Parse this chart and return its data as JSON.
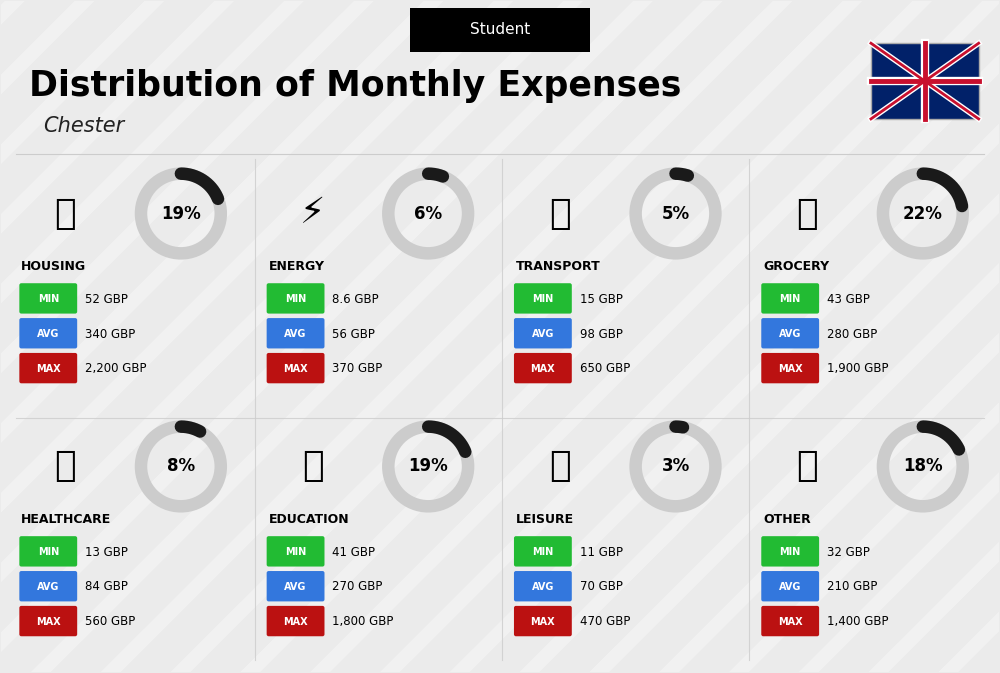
{
  "title": "Distribution of Monthly Expenses",
  "subtitle": "Chester",
  "tag": "Student",
  "bg_color": "#ebebeb",
  "categories": [
    {
      "name": "HOUSING",
      "pct": 19,
      "min": "52 GBP",
      "avg": "340 GBP",
      "max": "2,200 GBP",
      "row": 0,
      "col": 0
    },
    {
      "name": "ENERGY",
      "pct": 6,
      "min": "8.6 GBP",
      "avg": "56 GBP",
      "max": "370 GBP",
      "row": 0,
      "col": 1
    },
    {
      "name": "TRANSPORT",
      "pct": 5,
      "min": "15 GBP",
      "avg": "98 GBP",
      "max": "650 GBP",
      "row": 0,
      "col": 2
    },
    {
      "name": "GROCERY",
      "pct": 22,
      "min": "43 GBP",
      "avg": "280 GBP",
      "max": "1,900 GBP",
      "row": 0,
      "col": 3
    },
    {
      "name": "HEALTHCARE",
      "pct": 8,
      "min": "13 GBP",
      "avg": "84 GBP",
      "max": "560 GBP",
      "row": 1,
      "col": 0
    },
    {
      "name": "EDUCATION",
      "pct": 19,
      "min": "41 GBP",
      "avg": "270 GBP",
      "max": "1,800 GBP",
      "row": 1,
      "col": 1
    },
    {
      "name": "LEISURE",
      "pct": 3,
      "min": "11 GBP",
      "avg": "70 GBP",
      "max": "470 GBP",
      "row": 1,
      "col": 2
    },
    {
      "name": "OTHER",
      "pct": 18,
      "min": "32 GBP",
      "avg": "210 GBP",
      "max": "1,400 GBP",
      "row": 1,
      "col": 3
    }
  ],
  "min_color": "#22bb33",
  "avg_color": "#3377dd",
  "max_color": "#bb1111",
  "arc_color": "#1a1a1a",
  "arc_bg_color": "#cccccc",
  "label_color": "#ffffff"
}
